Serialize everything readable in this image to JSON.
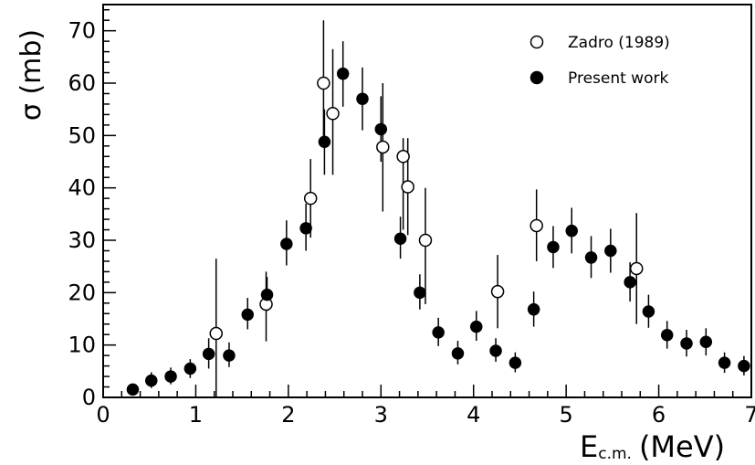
{
  "chart_data": {
    "type": "scatter",
    "ylabel": "σ (mb)",
    "xlabel_main": "E",
    "xlabel_sub": "c.m.",
    "xlabel_unit": "(MeV)",
    "xlim": [
      0,
      7
    ],
    "ylim": [
      0,
      75
    ],
    "x_ticks": [
      0,
      1,
      2,
      3,
      4,
      5,
      6,
      7
    ],
    "y_ticks": [
      0,
      10,
      20,
      30,
      40,
      50,
      60,
      70
    ],
    "x_tick_labels": [
      "0",
      "1",
      "2",
      "3",
      "4",
      "5",
      "6",
      "7"
    ],
    "y_tick_labels": [
      "0",
      "10",
      "20",
      "30",
      "40",
      "50",
      "60",
      "70"
    ],
    "grid": false,
    "legend_position": "top-right",
    "series": [
      {
        "name": "Zadro (1989)",
        "marker": "open-circle",
        "points": [
          {
            "x": 1.22,
            "y": 12.2,
            "lo": 0.0,
            "hi": 26.5
          },
          {
            "x": 1.76,
            "y": 17.8,
            "lo": 10.7,
            "hi": 24.0
          },
          {
            "x": 2.24,
            "y": 38.0,
            "lo": 30.5,
            "hi": 45.5
          },
          {
            "x": 2.38,
            "y": 60.0,
            "lo": 48.0,
            "hi": 72.0
          },
          {
            "x": 2.48,
            "y": 54.2,
            "lo": 42.5,
            "hi": 66.5
          },
          {
            "x": 3.02,
            "y": 47.8,
            "lo": 35.5,
            "hi": 60.0
          },
          {
            "x": 3.24,
            "y": 46.0,
            "lo": 32.0,
            "hi": 49.5
          },
          {
            "x": 3.29,
            "y": 40.2,
            "lo": 31.0,
            "hi": 49.5
          },
          {
            "x": 3.48,
            "y": 30.0,
            "lo": 17.8,
            "hi": 40.0
          },
          {
            "x": 4.26,
            "y": 20.2,
            "lo": 13.2,
            "hi": 27.2
          },
          {
            "x": 4.68,
            "y": 32.8,
            "lo": 26.0,
            "hi": 39.7
          },
          {
            "x": 5.76,
            "y": 24.6,
            "lo": 14.0,
            "hi": 35.2
          }
        ]
      },
      {
        "name": "Present work",
        "marker": "filled-circle",
        "points": [
          {
            "x": 0.32,
            "y": 1.5,
            "lo": 0.8,
            "hi": 2.2
          },
          {
            "x": 0.52,
            "y": 3.2,
            "lo": 1.8,
            "hi": 4.8
          },
          {
            "x": 0.73,
            "y": 4.0,
            "lo": 2.5,
            "hi": 5.7
          },
          {
            "x": 0.94,
            "y": 5.5,
            "lo": 3.7,
            "hi": 7.3
          },
          {
            "x": 1.14,
            "y": 8.3,
            "lo": 5.5,
            "hi": 11.3
          },
          {
            "x": 1.36,
            "y": 8.0,
            "lo": 5.8,
            "hi": 10.5
          },
          {
            "x": 1.56,
            "y": 15.8,
            "lo": 13.0,
            "hi": 19.0
          },
          {
            "x": 1.77,
            "y": 19.6,
            "lo": 16.5,
            "hi": 23.0
          },
          {
            "x": 1.98,
            "y": 29.3,
            "lo": 25.2,
            "hi": 33.8
          },
          {
            "x": 2.19,
            "y": 32.3,
            "lo": 28.0,
            "hi": 37.0
          },
          {
            "x": 2.39,
            "y": 48.8,
            "lo": 42.5,
            "hi": 55.0
          },
          {
            "x": 2.59,
            "y": 61.8,
            "lo": 55.5,
            "hi": 68.0
          },
          {
            "x": 2.8,
            "y": 57.0,
            "lo": 51.0,
            "hi": 63.0
          },
          {
            "x": 3.0,
            "y": 51.2,
            "lo": 45.0,
            "hi": 57.5
          },
          {
            "x": 3.21,
            "y": 30.3,
            "lo": 26.5,
            "hi": 34.5
          },
          {
            "x": 3.42,
            "y": 20.0,
            "lo": 16.8,
            "hi": 23.5
          },
          {
            "x": 3.62,
            "y": 12.4,
            "lo": 9.8,
            "hi": 15.2
          },
          {
            "x": 3.83,
            "y": 8.4,
            "lo": 6.3,
            "hi": 10.8
          },
          {
            "x": 4.03,
            "y": 13.5,
            "lo": 10.8,
            "hi": 16.5
          },
          {
            "x": 4.24,
            "y": 8.9,
            "lo": 6.8,
            "hi": 11.3
          },
          {
            "x": 4.45,
            "y": 6.6,
            "lo": 4.8,
            "hi": 8.6
          },
          {
            "x": 4.65,
            "y": 16.8,
            "lo": 13.5,
            "hi": 20.2
          },
          {
            "x": 4.86,
            "y": 28.7,
            "lo": 24.7,
            "hi": 32.7
          },
          {
            "x": 5.06,
            "y": 31.8,
            "lo": 27.5,
            "hi": 36.2
          },
          {
            "x": 5.27,
            "y": 26.7,
            "lo": 22.8,
            "hi": 30.8
          },
          {
            "x": 5.48,
            "y": 28.0,
            "lo": 23.8,
            "hi": 32.2
          },
          {
            "x": 5.69,
            "y": 22.0,
            "lo": 18.3,
            "hi": 25.8
          },
          {
            "x": 5.89,
            "y": 16.4,
            "lo": 13.3,
            "hi": 19.6
          },
          {
            "x": 6.09,
            "y": 11.9,
            "lo": 9.3,
            "hi": 14.6
          },
          {
            "x": 6.3,
            "y": 10.3,
            "lo": 7.8,
            "hi": 12.9
          },
          {
            "x": 6.51,
            "y": 10.6,
            "lo": 8.0,
            "hi": 13.2
          },
          {
            "x": 6.71,
            "y": 6.6,
            "lo": 4.7,
            "hi": 8.6
          },
          {
            "x": 6.92,
            "y": 6.0,
            "lo": 4.2,
            "hi": 7.9
          }
        ]
      }
    ]
  }
}
